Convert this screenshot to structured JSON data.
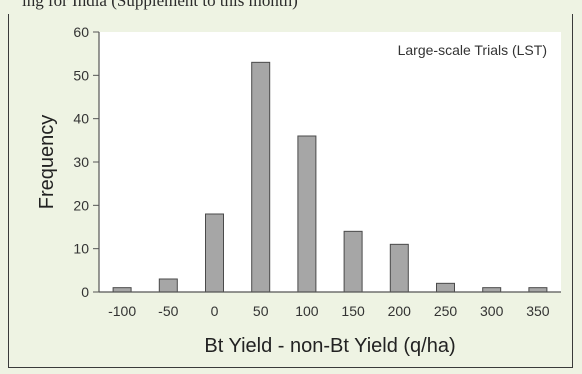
{
  "caption": "ing   for India (Supplement to this month)",
  "chart_data": {
    "type": "bar",
    "categories": [
      "-100",
      "-50",
      "0",
      "50",
      "100",
      "150",
      "200",
      "250",
      "300",
      "350"
    ],
    "values": [
      1,
      3,
      18,
      53,
      36,
      14,
      11,
      2,
      1,
      1
    ],
    "xlabel": "Bt Yield - non-Bt Yield (q/ha)",
    "ylabel": "Frequency",
    "annotation": "Large-scale Trials (LST)",
    "ylim": [
      0,
      60
    ],
    "yticks": [
      0,
      10,
      20,
      30,
      40,
      50,
      60
    ],
    "grid": false,
    "legend": "none"
  },
  "colors": {
    "background": "#eef3e3",
    "plot_area": "#ffffff",
    "bar_fill": "#a6a6a6",
    "bar_stroke": "#4a4a4a",
    "axis": "#555555"
  }
}
